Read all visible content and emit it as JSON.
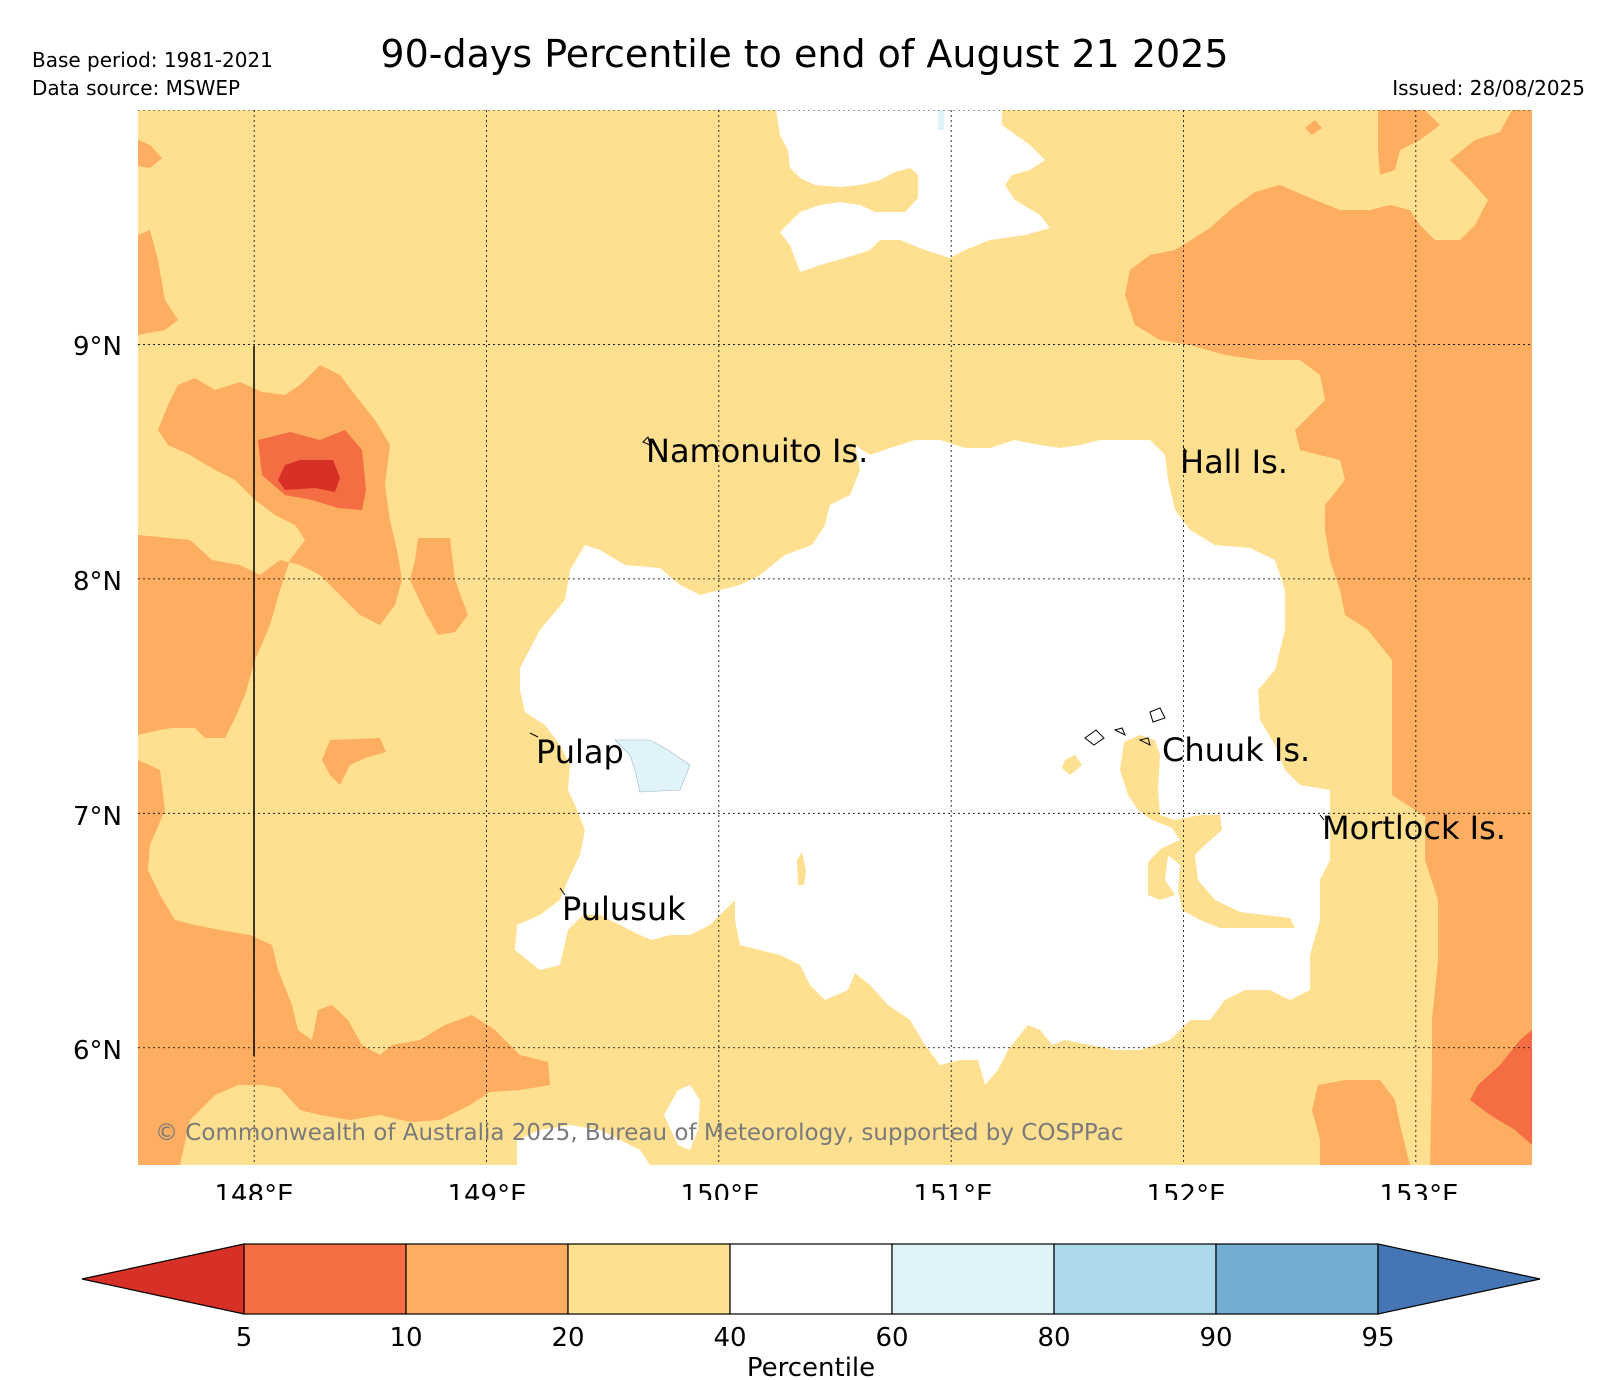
{
  "header": {
    "title": "90-days Percentile to end of August 21 2025",
    "base_period": "Base period: 1981-2021",
    "data_source": "Data source: MSWEP",
    "issued": "Issued: 28/08/2025"
  },
  "map": {
    "lon_range": [
      147.5,
      153.5
    ],
    "lat_range": [
      5.5,
      10.0
    ],
    "x_ticks": [
      "148°E",
      "149°E",
      "150°E",
      "151°E",
      "152°E",
      "153°E"
    ],
    "y_ticks": [
      "9°N",
      "8°N",
      "7°N",
      "6°N"
    ],
    "places": [
      "Namonuito Is.",
      "Hall Is.",
      "Pulap",
      "Chuuk Is.",
      "Mortlock Is.",
      "Pulusuk"
    ],
    "copyright": "© Commonwealth of Australia 2025, Bureau of Meteorology, supported by COSPPac"
  },
  "colorbar": {
    "label": "Percentile",
    "ticks": [
      "5",
      "10",
      "20",
      "40",
      "60",
      "80",
      "90",
      "95"
    ],
    "colors": {
      "below_5": "#d73027",
      "5_10": "#f46d43",
      "10_20": "#fdae61",
      "20_40": "#fee090",
      "40_60": "#ffffff",
      "60_80": "#e0f3f8",
      "80_90": "#abd9e9",
      "90_95": "#74add1",
      "above_95": "#4575b4"
    }
  }
}
